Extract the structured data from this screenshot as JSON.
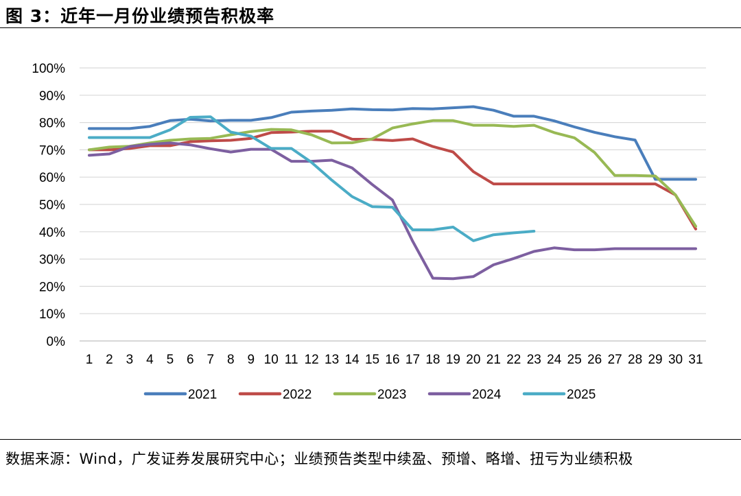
{
  "title": "图 3：近年一月份业绩预告积极率",
  "source": "数据来源：Wind，广发证券发展研究中心；业绩预告类型中续盈、预增、略增、扭亏为业绩积极",
  "chart_data": {
    "type": "line",
    "title": "",
    "xlabel": "",
    "ylabel": "",
    "ylim": [
      0,
      100
    ],
    "y_unit": "%",
    "yticks": [
      "0%",
      "10%",
      "20%",
      "30%",
      "40%",
      "50%",
      "60%",
      "70%",
      "80%",
      "90%",
      "100%"
    ],
    "grid": true,
    "legend_position": "bottom",
    "x": [
      "1",
      "2",
      "3",
      "4",
      "5",
      "6",
      "7",
      "8",
      "9",
      "10",
      "11",
      "12",
      "13",
      "14",
      "15",
      "16",
      "17",
      "18",
      "19",
      "20",
      "21",
      "22",
      "23",
      "24",
      "25",
      "26",
      "27",
      "28",
      "29",
      "30",
      "31"
    ],
    "series": [
      {
        "name": "2021",
        "color": "#4a7ebb",
        "values": [
          77.8,
          77.8,
          77.8,
          78.6,
          80.7,
          81.2,
          80.6,
          80.8,
          80.8,
          81.8,
          83.8,
          84.2,
          84.5,
          85,
          84.7,
          84.6,
          85.1,
          85,
          85.4,
          85.8,
          84.5,
          82.3,
          82.3,
          80.6,
          78.4,
          76.4,
          74.8,
          73.6,
          59.2,
          59.2,
          59.2
        ]
      },
      {
        "name": "2022",
        "color": "#be4b48",
        "values": [
          70,
          70,
          70.5,
          71.5,
          71.5,
          73,
          73.3,
          73.5,
          74.2,
          76.3,
          76.5,
          76.8,
          76.8,
          73.9,
          73.8,
          73.4,
          74,
          71.2,
          69.2,
          62,
          57.5,
          57.5,
          57.5,
          57.5,
          57.5,
          57.5,
          57.5,
          57.5,
          57.5,
          53.5,
          41
        ]
      },
      {
        "name": "2023",
        "color": "#98b954",
        "values": [
          70,
          71,
          71.3,
          72.5,
          73.5,
          74,
          74.2,
          75.5,
          76.7,
          77.5,
          77.3,
          75.5,
          72.5,
          72.6,
          74,
          78,
          79.5,
          80.7,
          80.7,
          79,
          79,
          78.6,
          79,
          76.3,
          74.4,
          69,
          60.6,
          60.6,
          60.4,
          53.5,
          42
        ]
      },
      {
        "name": "2024",
        "color": "#7d5fa0",
        "values": [
          68,
          68.5,
          71.2,
          72,
          72.5,
          71.8,
          70.4,
          69.2,
          70.2,
          70.2,
          65.8,
          65.8,
          66.2,
          63.4,
          57.3,
          51.6,
          36.5,
          23,
          22.8,
          23.6,
          27.9,
          30.2,
          32.8,
          34.1,
          33.4,
          33.4,
          33.8,
          33.8,
          33.8,
          33.8,
          33.8
        ]
      },
      {
        "name": "2025",
        "color": "#4bacc6",
        "values": [
          74.5,
          74.5,
          74.5,
          74.5,
          77.3,
          81.9,
          82.1,
          76.5,
          75,
          70.5,
          70.5,
          65.4,
          58.9,
          52.9,
          49.2,
          49,
          40.7,
          40.7,
          41.7,
          36.7,
          38.9,
          39.6,
          40.2,
          null,
          null,
          null,
          null,
          null,
          null,
          null,
          null
        ]
      }
    ]
  }
}
